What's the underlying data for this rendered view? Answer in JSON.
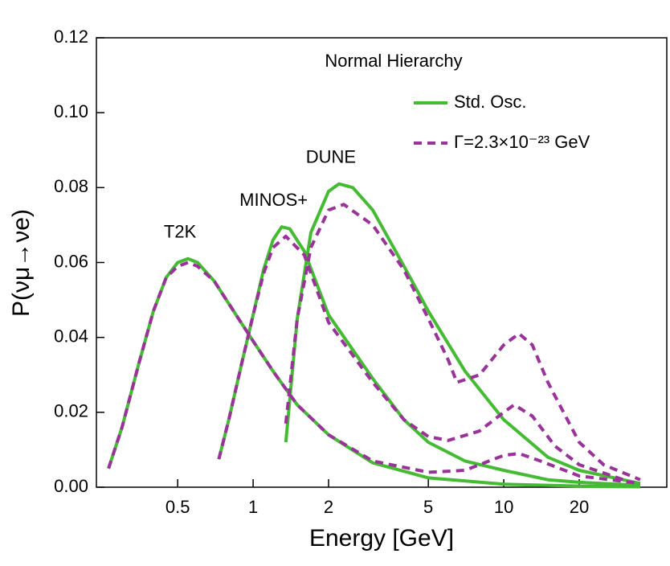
{
  "chart_data": {
    "type": "line",
    "xlabel": "Energy [GeV]",
    "ylabel": "P(νμ→νe)",
    "xscale": "log",
    "xlim": [
      0.237,
      44.7
    ],
    "ylim": [
      0,
      0.12
    ],
    "xticks": [
      0.5,
      1,
      2,
      5,
      10,
      20
    ],
    "yticks": [
      {
        "value": 0,
        "label": "0.00"
      },
      {
        "value": 0.02,
        "label": "0.02"
      },
      {
        "value": 0.04,
        "label": "0.04"
      },
      {
        "value": 0.06,
        "label": "0.06"
      },
      {
        "value": 0.08,
        "label": "0.08"
      },
      {
        "value": 0.1,
        "label": "0.10"
      },
      {
        "value": 0.12,
        "label": "0.12"
      }
    ],
    "legend_title": "Normal Hierarchy",
    "legend_position": "upper right",
    "series": [
      {
        "name": "Std. Osc.",
        "color": "#44bb33",
        "dashed": false,
        "curves": [
          {
            "label": "T2K",
            "x": [
              0.265,
              0.3,
              0.35,
              0.4,
              0.45,
              0.5,
              0.55,
              0.6,
              0.7,
              0.8,
              1,
              1.2,
              1.5,
              2,
              3,
              5,
              10,
              20,
              35
            ],
            "values": [
              0.005,
              0.016,
              0.033,
              0.047,
              0.056,
              0.06,
              0.061,
              0.06,
              0.055,
              0.049,
              0.039,
              0.031,
              0.022,
              0.014,
              0.0065,
              0.0025,
              0.0008,
              0.0003,
              0.0001
            ]
          },
          {
            "label": "MINOS+",
            "x": [
              0.73,
              0.8,
              0.9,
              1,
              1.1,
              1.2,
              1.3,
              1.4,
              1.6,
              2,
              3,
              4,
              5,
              7,
              10,
              15,
              20,
              35
            ],
            "values": [
              0.0075,
              0.018,
              0.033,
              0.046,
              0.058,
              0.066,
              0.0695,
              0.069,
              0.063,
              0.046,
              0.029,
              0.018,
              0.012,
              0.007,
              0.0045,
              0.002,
              0.0013,
              0.0005
            ]
          },
          {
            "label": "DUNE",
            "x": [
              1.35,
              1.5,
              1.7,
              2,
              2.2,
              2.5,
              3,
              4,
              5,
              7,
              10,
              15,
              20,
              35
            ],
            "values": [
              0.012,
              0.045,
              0.068,
              0.079,
              0.081,
              0.08,
              0.074,
              0.059,
              0.047,
              0.031,
              0.018,
              0.008,
              0.0045,
              0.001
            ]
          }
        ]
      },
      {
        "name": "Γ=2.3×10⁻²³ GeV",
        "color": "#993399",
        "dashed": true,
        "curves": [
          {
            "x": [
              0.265,
              0.3,
              0.35,
              0.4,
              0.45,
              0.5,
              0.55,
              0.6,
              0.7,
              0.8,
              1,
              1.2,
              1.5,
              2,
              3,
              5,
              7,
              10,
              11.5,
              14,
              20,
              35
            ],
            "values": [
              0.005,
              0.016,
              0.033,
              0.047,
              0.056,
              0.059,
              0.06,
              0.059,
              0.055,
              0.049,
              0.039,
              0.031,
              0.022,
              0.014,
              0.007,
              0.004,
              0.0045,
              0.0085,
              0.009,
              0.007,
              0.003,
              0.001
            ]
          },
          {
            "x": [
              0.73,
              0.8,
              0.9,
              1,
              1.1,
              1.2,
              1.35,
              1.6,
              2,
              3,
              4,
              5,
              6,
              8,
              10,
              11,
              13,
              16,
              20,
              30
            ],
            "values": [
              0.0075,
              0.018,
              0.033,
              0.046,
              0.057,
              0.064,
              0.067,
              0.062,
              0.044,
              0.028,
              0.018,
              0.0135,
              0.0125,
              0.015,
              0.02,
              0.022,
              0.019,
              0.011,
              0.006,
              0.002
            ]
          },
          {
            "x": [
              1.35,
              1.5,
              1.7,
              2,
              2.3,
              3,
              4,
              5,
              6,
              6.5,
              8,
              10,
              11.5,
              13,
              15,
              20,
              25,
              35
            ],
            "values": [
              0.017,
              0.045,
              0.064,
              0.074,
              0.0755,
              0.07,
              0.058,
              0.045,
              0.034,
              0.028,
              0.03,
              0.038,
              0.041,
              0.038,
              0.028,
              0.012,
              0.006,
              0.002
            ]
          }
        ]
      }
    ]
  }
}
